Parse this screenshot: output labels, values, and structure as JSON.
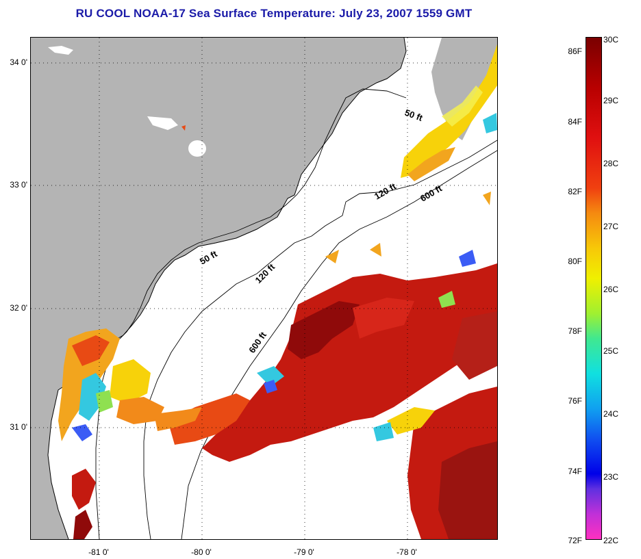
{
  "title": "RU COOL  NOAA-17  Sea Surface Temperature:  July 23, 2007 1559 GMT",
  "colors": {
    "land": "#b4b4b4",
    "title": "#1a1aa8",
    "background": "#ffffff"
  },
  "map": {
    "lat_ticks": [
      {
        "label": "34 0'",
        "lat": 34.0
      },
      {
        "label": "33 0'",
        "lat": 33.0
      },
      {
        "label": "32 0'",
        "lat": 32.0
      },
      {
        "label": "31 0'",
        "lat": 31.0
      }
    ],
    "lon_ticks": [
      {
        "label": "-81 0'",
        "lon": -81.0
      },
      {
        "label": "-80 0'",
        "lon": -80.0
      },
      {
        "label": "-79 0'",
        "lon": -79.0
      },
      {
        "label": "-78 0'",
        "lon": -78.0
      }
    ],
    "depth_labels": [
      "50 ft",
      "50 ft",
      "120 ft",
      "120 ft",
      "600 ft",
      "600 ft"
    ]
  },
  "colorbar": {
    "fahrenheit_labels": [
      "86F",
      "84F",
      "82F",
      "80F",
      "78F",
      "76F",
      "74F",
      "72F"
    ],
    "celsius_labels": [
      "30C",
      "29C",
      "28C",
      "27C",
      "26C",
      "25C",
      "24C",
      "23C",
      "22C"
    ],
    "range_c": [
      22,
      30
    ]
  }
}
